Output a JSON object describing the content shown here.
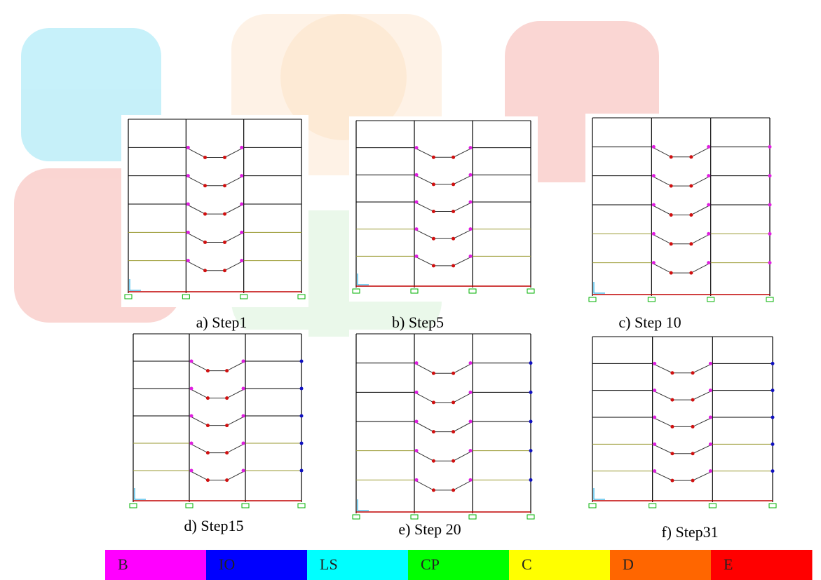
{
  "captions": [
    "a) Step1",
    "b) Step5",
    "c) Step 10",
    "d) Step15",
    "e) Step 20",
    "f) Step31"
  ],
  "legend": [
    {
      "label": "B",
      "color": "#ff00ff"
    },
    {
      "label": "IO",
      "color": "#0000ff"
    },
    {
      "label": "LS",
      "color": "#00ffff"
    },
    {
      "label": "CP",
      "color": "#00ff00"
    },
    {
      "label": "C",
      "color": "#ffff00"
    },
    {
      "label": "D",
      "color": "#ff6600"
    },
    {
      "label": "E",
      "color": "#ff0000"
    }
  ]
}
